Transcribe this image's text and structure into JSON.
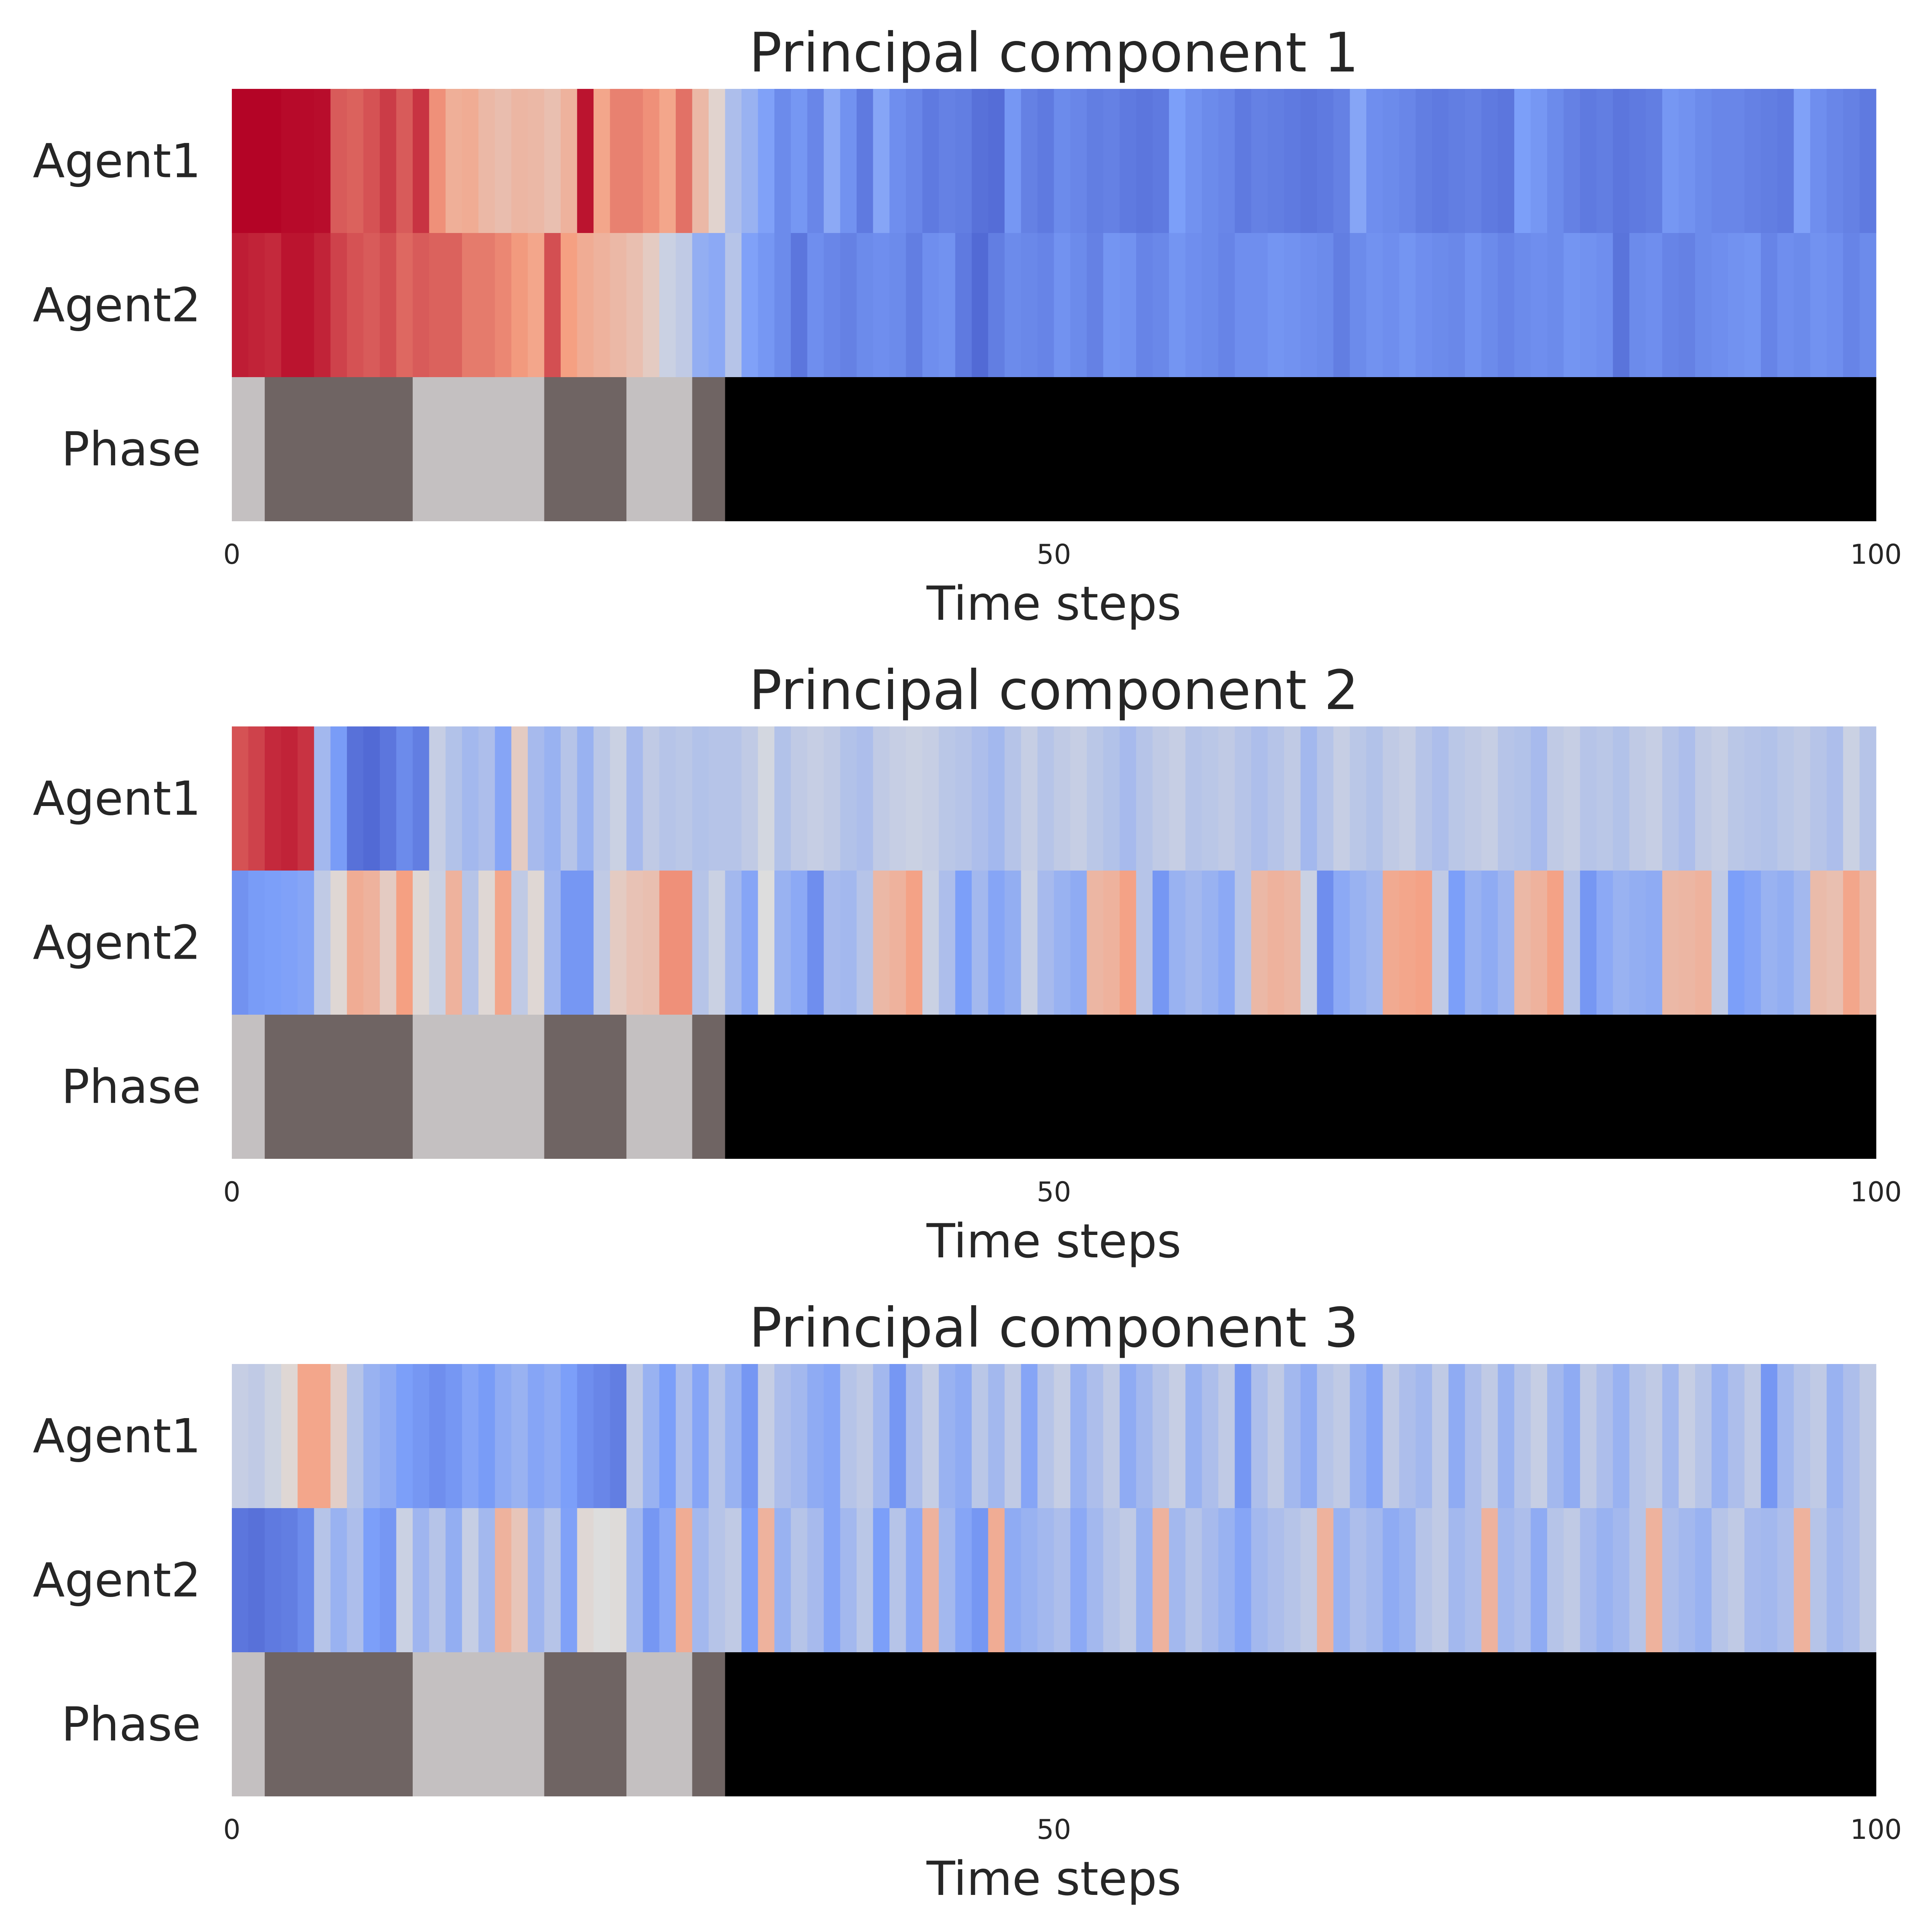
{
  "chart_data": [
    {
      "type": "heatmap",
      "title": "Principal component 1",
      "xlabel": "Time steps",
      "xlim": [
        0,
        100
      ],
      "xticks": [
        "0",
        "50",
        "100"
      ],
      "xtick_values": [
        0,
        50,
        100
      ],
      "rows": [
        "Agent1",
        "Agent2",
        "Phase"
      ],
      "value_range": [
        -1,
        1
      ],
      "colormap": "coolwarm",
      "agent1": [
        1.0,
        1.0,
        1.0,
        0.98,
        0.98,
        0.97,
        0.72,
        0.7,
        0.75,
        0.82,
        0.72,
        0.85,
        0.55,
        0.38,
        0.4,
        0.3,
        0.26,
        0.32,
        0.3,
        0.25,
        0.35,
        0.95,
        0.45,
        0.6,
        0.6,
        0.55,
        0.45,
        0.65,
        0.3,
        0.08,
        -0.25,
        -0.35,
        -0.48,
        -0.62,
        -0.55,
        -0.65,
        -0.42,
        -0.58,
        -0.72,
        -0.45,
        -0.6,
        -0.65,
        -0.72,
        -0.68,
        -0.7,
        -0.78,
        -0.8,
        -0.55,
        -0.68,
        -0.72,
        -0.62,
        -0.65,
        -0.7,
        -0.68,
        -0.72,
        -0.75,
        -0.72,
        -0.5,
        -0.58,
        -0.62,
        -0.65,
        -0.72,
        -0.68,
        -0.7,
        -0.72,
        -0.75,
        -0.72,
        -0.68,
        -0.45,
        -0.6,
        -0.62,
        -0.65,
        -0.7,
        -0.72,
        -0.7,
        -0.68,
        -0.72,
        -0.75,
        -0.5,
        -0.55,
        -0.62,
        -0.68,
        -0.72,
        -0.7,
        -0.75,
        -0.72,
        -0.7,
        -0.55,
        -0.58,
        -0.62,
        -0.65,
        -0.65,
        -0.68,
        -0.7,
        -0.72,
        -0.48,
        -0.6,
        -0.65,
        -0.68,
        -0.72
      ],
      "agent2": [
        0.92,
        0.9,
        0.88,
        0.95,
        0.95,
        0.9,
        0.8,
        0.75,
        0.72,
        0.76,
        0.68,
        0.72,
        0.7,
        0.7,
        0.62,
        0.62,
        0.58,
        0.52,
        0.45,
        0.76,
        0.5,
        0.4,
        0.35,
        0.3,
        0.25,
        0.15,
        -0.1,
        -0.15,
        -0.38,
        -0.42,
        -0.2,
        -0.48,
        -0.55,
        -0.62,
        -0.75,
        -0.6,
        -0.65,
        -0.68,
        -0.62,
        -0.6,
        -0.62,
        -0.7,
        -0.6,
        -0.58,
        -0.72,
        -0.82,
        -0.7,
        -0.62,
        -0.64,
        -0.66,
        -0.58,
        -0.62,
        -0.68,
        -0.56,
        -0.58,
        -0.66,
        -0.64,
        -0.56,
        -0.6,
        -0.62,
        -0.66,
        -0.6,
        -0.6,
        -0.56,
        -0.58,
        -0.6,
        -0.62,
        -0.7,
        -0.62,
        -0.58,
        -0.6,
        -0.56,
        -0.6,
        -0.62,
        -0.64,
        -0.58,
        -0.62,
        -0.66,
        -0.62,
        -0.6,
        -0.62,
        -0.56,
        -0.58,
        -0.6,
        -0.76,
        -0.62,
        -0.6,
        -0.66,
        -0.68,
        -0.62,
        -0.6,
        -0.58,
        -0.56,
        -0.66,
        -0.6,
        -0.62,
        -0.58,
        -0.6,
        -0.66,
        -0.62
      ]
    },
    {
      "type": "heatmap",
      "title": "Principal component 2",
      "xlabel": "Time steps",
      "xlim": [
        0,
        100
      ],
      "xticks": [
        "0",
        "50",
        "100"
      ],
      "xtick_values": [
        0,
        50,
        100
      ],
      "rows": [
        "Agent1",
        "Agent2",
        "Phase"
      ],
      "value_range": [
        -1,
        1
      ],
      "colormap": "coolwarm",
      "agent1": [
        0.75,
        0.8,
        0.88,
        0.9,
        0.85,
        -0.3,
        -0.52,
        -0.78,
        -0.82,
        -0.75,
        -0.62,
        -0.7,
        -0.12,
        -0.22,
        -0.3,
        -0.25,
        -0.45,
        0.15,
        -0.28,
        -0.35,
        -0.2,
        -0.35,
        -0.18,
        -0.1,
        -0.28,
        -0.15,
        -0.2,
        -0.18,
        -0.22,
        -0.2,
        -0.2,
        -0.15,
        -0.05,
        -0.22,
        -0.15,
        -0.12,
        -0.15,
        -0.22,
        -0.25,
        -0.15,
        -0.12,
        -0.1,
        -0.12,
        -0.18,
        -0.2,
        -0.25,
        -0.3,
        -0.2,
        -0.12,
        -0.2,
        -0.15,
        -0.12,
        -0.18,
        -0.22,
        -0.28,
        -0.2,
        -0.15,
        -0.12,
        -0.2,
        -0.18,
        -0.15,
        -0.2,
        -0.25,
        -0.2,
        -0.15,
        -0.3,
        -0.2,
        -0.12,
        -0.18,
        -0.22,
        -0.15,
        -0.12,
        -0.2,
        -0.25,
        -0.18,
        -0.15,
        -0.12,
        -0.2,
        -0.22,
        -0.28,
        -0.15,
        -0.12,
        -0.2,
        -0.18,
        -0.22,
        -0.15,
        -0.12,
        -0.2,
        -0.25,
        -0.15,
        -0.12,
        -0.18,
        -0.2,
        -0.22,
        -0.18,
        -0.15,
        -0.2,
        -0.25,
        -0.1,
        -0.2
      ],
      "agent2": [
        -0.58,
        -0.52,
        -0.5,
        -0.48,
        -0.45,
        -0.15,
        0.05,
        0.4,
        0.35,
        0.15,
        0.5,
        0.05,
        -0.1,
        0.35,
        -0.2,
        0.05,
        0.45,
        -0.15,
        0.05,
        -0.32,
        -0.55,
        -0.55,
        -0.15,
        0.15,
        0.22,
        0.25,
        0.55,
        0.55,
        -0.2,
        -0.1,
        -0.3,
        -0.45,
        0.0,
        -0.35,
        -0.42,
        -0.6,
        -0.28,
        -0.3,
        -0.2,
        0.3,
        0.35,
        0.48,
        -0.1,
        -0.25,
        -0.5,
        -0.3,
        -0.45,
        -0.38,
        -0.1,
        -0.28,
        -0.35,
        -0.4,
        0.32,
        0.35,
        0.48,
        -0.2,
        -0.55,
        -0.35,
        -0.3,
        -0.35,
        -0.42,
        -0.2,
        0.3,
        0.35,
        0.32,
        -0.1,
        -0.6,
        -0.42,
        -0.35,
        -0.3,
        0.42,
        0.45,
        0.48,
        -0.15,
        -0.5,
        -0.35,
        -0.4,
        -0.32,
        0.3,
        0.35,
        0.48,
        -0.2,
        -0.55,
        -0.42,
        -0.35,
        -0.38,
        -0.4,
        0.3,
        0.32,
        0.35,
        -0.15,
        -0.5,
        -0.45,
        -0.35,
        -0.38,
        -0.3,
        0.28,
        0.25,
        0.45,
        0.3
      ],
      "phase_inferred": true
    },
    {
      "type": "heatmap",
      "title": "Principal component 3",
      "xlabel": "Time steps",
      "xlim": [
        0,
        100
      ],
      "xticks": [
        "0",
        "50",
        "100"
      ],
      "xtick_values": [
        0,
        50,
        100
      ],
      "rows": [
        "Agent1",
        "Agent2",
        "Phase"
      ],
      "value_range": [
        -1,
        1
      ],
      "colormap": "coolwarm",
      "agent1": [
        -0.12,
        -0.15,
        -0.08,
        0.05,
        0.45,
        0.45,
        0.12,
        -0.2,
        -0.35,
        -0.4,
        -0.5,
        -0.55,
        -0.6,
        -0.55,
        -0.45,
        -0.52,
        -0.4,
        -0.35,
        -0.45,
        -0.4,
        -0.5,
        -0.6,
        -0.65,
        -0.7,
        -0.15,
        -0.35,
        -0.5,
        -0.25,
        -0.45,
        -0.2,
        -0.35,
        -0.55,
        -0.12,
        -0.25,
        -0.3,
        -0.4,
        -0.45,
        -0.2,
        -0.15,
        -0.3,
        -0.55,
        -0.25,
        -0.12,
        -0.35,
        -0.4,
        -0.18,
        -0.3,
        -0.15,
        -0.45,
        -0.2,
        -0.12,
        -0.35,
        -0.25,
        -0.15,
        -0.4,
        -0.3,
        -0.2,
        -0.12,
        -0.35,
        -0.25,
        -0.15,
        -0.55,
        -0.25,
        -0.15,
        -0.3,
        -0.4,
        -0.2,
        -0.15,
        -0.35,
        -0.45,
        -0.15,
        -0.25,
        -0.3,
        -0.15,
        -0.4,
        -0.25,
        -0.15,
        -0.35,
        -0.2,
        -0.12,
        -0.3,
        -0.4,
        -0.15,
        -0.25,
        -0.35,
        -0.2,
        -0.15,
        -0.3,
        -0.12,
        -0.2,
        -0.35,
        -0.25,
        -0.15,
        -0.55,
        -0.3,
        -0.2,
        -0.15,
        -0.35,
        -0.25,
        -0.15
      ],
      "agent2": [
        -0.75,
        -0.78,
        -0.72,
        -0.7,
        -0.62,
        -0.2,
        -0.35,
        -0.25,
        -0.5,
        -0.55,
        -0.1,
        -0.32,
        -0.2,
        -0.38,
        -0.12,
        -0.3,
        0.35,
        0.2,
        -0.32,
        -0.2,
        -0.48,
        0.05,
        0.0,
        0.02,
        -0.3,
        -0.55,
        -0.42,
        0.4,
        -0.3,
        -0.2,
        -0.15,
        -0.5,
        0.35,
        -0.35,
        -0.2,
        -0.28,
        -0.45,
        -0.3,
        -0.18,
        -0.5,
        -0.2,
        -0.42,
        0.35,
        -0.3,
        -0.45,
        -0.55,
        0.4,
        -0.4,
        -0.35,
        -0.3,
        -0.25,
        -0.42,
        -0.3,
        -0.2,
        -0.15,
        -0.35,
        0.35,
        -0.3,
        -0.2,
        -0.28,
        -0.35,
        -0.45,
        -0.3,
        -0.25,
        -0.2,
        -0.15,
        0.35,
        -0.35,
        -0.25,
        -0.3,
        -0.4,
        -0.35,
        -0.2,
        -0.15,
        -0.3,
        -0.25,
        0.35,
        -0.3,
        -0.25,
        -0.4,
        -0.2,
        -0.15,
        -0.28,
        -0.35,
        -0.3,
        -0.2,
        0.35,
        -0.25,
        -0.3,
        -0.35,
        -0.2,
        -0.15,
        -0.28,
        -0.3,
        -0.25,
        0.35,
        -0.2,
        -0.3,
        -0.25,
        -0.15
      ]
    }
  ],
  "phase_segments": [
    {
      "start": 0,
      "end": 2,
      "level": 0.25
    },
    {
      "start": 2,
      "end": 11,
      "level": 0.55
    },
    {
      "start": 11,
      "end": 19,
      "level": 0.25
    },
    {
      "start": 19,
      "end": 24,
      "level": 0.55
    },
    {
      "start": 24,
      "end": 28,
      "level": 0.25
    },
    {
      "start": 28,
      "end": 30,
      "level": 0.55
    },
    {
      "start": 30,
      "end": 100,
      "level": 1.0
    }
  ],
  "phase_colors": {
    "0.25": "#c4c0c1",
    "0.55": "#6f6463",
    "1.0": "#000000"
  }
}
